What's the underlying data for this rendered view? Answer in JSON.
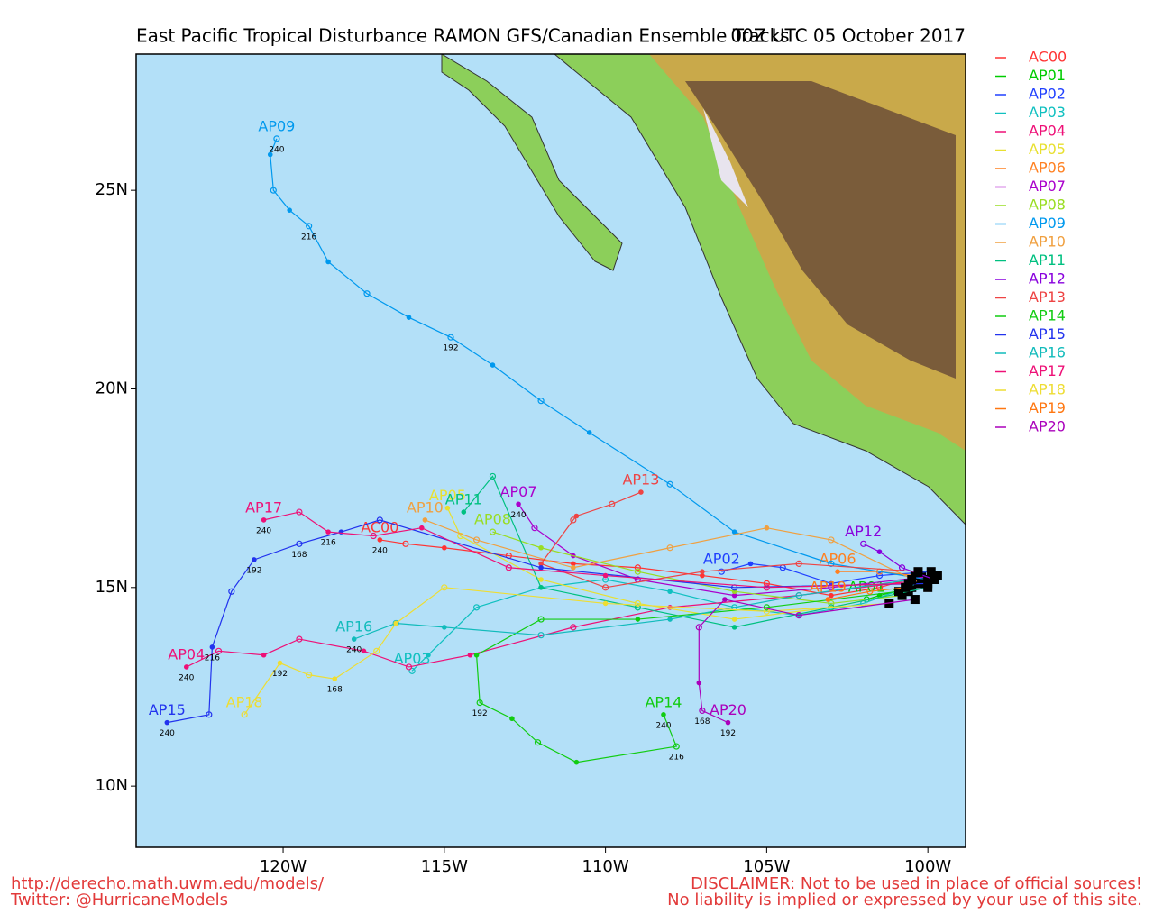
{
  "map": {
    "title": "East Pacific Tropical Disturbance RAMON GFS/Canadian Ensemble Tracks",
    "subtitle": "00Z UTC 05 October 2017",
    "lon_range": [
      -124.56,
      -98.83
    ],
    "lat_range": [
      8.46,
      28.43
    ],
    "lon_ticks": [
      {
        "value": -120,
        "label": "120W"
      },
      {
        "value": -115,
        "label": "115W"
      },
      {
        "value": -110,
        "label": "110W"
      },
      {
        "value": -105,
        "label": "105W"
      },
      {
        "value": -100,
        "label": "100W"
      }
    ],
    "lat_ticks": [
      {
        "value": 10,
        "label": "10N"
      },
      {
        "value": 15,
        "label": "15N"
      },
      {
        "value": 20,
        "label": "20N"
      },
      {
        "value": 25,
        "label": "25N"
      }
    ],
    "tracks": [
      {
        "name": "AC00",
        "color": "#ff3333",
        "points": [
          [
            -100.2,
            15.3
          ],
          [
            -101.5,
            15.0
          ],
          [
            -103,
            14.8
          ],
          [
            -105,
            15.1
          ],
          [
            -107,
            15.3
          ],
          [
            -109,
            15.5
          ],
          [
            -111,
            15.6
          ],
          [
            -113,
            15.8
          ],
          [
            -115,
            16.0
          ],
          [
            -116.2,
            16.1
          ],
          [
            -117,
            16.2
          ]
        ],
        "hours": [
          {
            "point": 10,
            "hour": 240
          }
        ]
      },
      {
        "name": "AP01",
        "color": "#00cc00",
        "points": [
          [
            -100.5,
            15.0
          ],
          [
            -101,
            14.9
          ],
          [
            -101.5,
            14.8
          ],
          [
            -101.9,
            14.7
          ]
        ],
        "hours": []
      },
      {
        "name": "AP02",
        "color": "#2040ff",
        "points": [
          [
            -99.9,
            15.4
          ],
          [
            -101.5,
            15.3
          ],
          [
            -103,
            15.1
          ],
          [
            -104.5,
            15.5
          ],
          [
            -105.5,
            15.6
          ],
          [
            -106.4,
            15.4
          ]
        ],
        "hours": []
      },
      {
        "name": "AP03",
        "color": "#10c0c0",
        "points": [
          [
            -100.3,
            15.1
          ],
          [
            -102,
            14.6
          ],
          [
            -104,
            14.3
          ],
          [
            -106,
            14.5
          ],
          [
            -108,
            14.9
          ],
          [
            -110,
            15.2
          ],
          [
            -112,
            15.0
          ],
          [
            -114,
            14.5
          ],
          [
            -115.5,
            13.3
          ],
          [
            -116,
            12.9
          ]
        ],
        "hours": []
      },
      {
        "name": "AP04",
        "color": "#ee1077",
        "points": [
          [
            -100.1,
            15.2
          ],
          [
            -104,
            14.8
          ],
          [
            -108,
            14.5
          ],
          [
            -111,
            14.0
          ],
          [
            -114.2,
            13.3
          ],
          [
            -116.1,
            13.0
          ],
          [
            -117.5,
            13.4
          ],
          [
            -119.5,
            13.7
          ],
          [
            -120.6,
            13.3
          ],
          [
            -122,
            13.4
          ],
          [
            -123,
            13.0
          ]
        ],
        "hours": [
          {
            "point": 10,
            "hour": 240
          }
        ]
      },
      {
        "name": "AP05",
        "color": "#e8e030",
        "points": [
          [
            -100.6,
            14.9
          ],
          [
            -103,
            14.5
          ],
          [
            -106,
            14.2
          ],
          [
            -109,
            14.6
          ],
          [
            -112,
            15.2
          ],
          [
            -114.5,
            16.3
          ],
          [
            -114.9,
            17.0
          ]
        ],
        "hours": []
      },
      {
        "name": "AP06",
        "color": "#ff8020",
        "points": [
          [
            -100.4,
            15.3
          ],
          [
            -101.5,
            15.4
          ],
          [
            -102.8,
            15.4
          ]
        ],
        "hours": []
      },
      {
        "name": "AP07",
        "color": "#aa00cc",
        "points": [
          [
            -99.7,
            15.3
          ],
          [
            -103,
            15.0
          ],
          [
            -106,
            14.8
          ],
          [
            -109,
            15.2
          ],
          [
            -111,
            15.8
          ],
          [
            -112.2,
            16.5
          ],
          [
            -112.7,
            17.1
          ]
        ],
        "hours": [
          {
            "point": 6,
            "hour": 240
          }
        ]
      },
      {
        "name": "AP08",
        "color": "#99dd22",
        "points": [
          [
            -100.8,
            14.8
          ],
          [
            -103,
            14.6
          ],
          [
            -106,
            14.9
          ],
          [
            -109,
            15.4
          ],
          [
            -112,
            16.0
          ],
          [
            -113.5,
            16.4
          ]
        ],
        "hours": []
      },
      {
        "name": "AP09",
        "color": "#0099ee",
        "points": [
          [
            -100,
            15.2
          ],
          [
            -103,
            15.6
          ],
          [
            -106,
            16.4
          ],
          [
            -108,
            17.6
          ],
          [
            -110.5,
            18.9
          ],
          [
            -112,
            19.7
          ],
          [
            -113.5,
            20.6
          ],
          [
            -114.8,
            21.3
          ],
          [
            -116.1,
            21.8
          ],
          [
            -117.4,
            22.4
          ],
          [
            -118.6,
            23.2
          ],
          [
            -119.2,
            24.1
          ],
          [
            -119.8,
            24.5
          ],
          [
            -120.3,
            25.0
          ],
          [
            -120.4,
            25.9
          ],
          [
            -120.2,
            26.3
          ]
        ],
        "hours": [
          {
            "point": 7,
            "hour": 192
          },
          {
            "point": 11,
            "hour": 216
          },
          {
            "point": 15,
            "hour": 240
          }
        ]
      },
      {
        "name": "AP10",
        "color": "#f0a040",
        "points": [
          [
            -100.2,
            15.1
          ],
          [
            -103,
            16.2
          ],
          [
            -105,
            16.5
          ],
          [
            -108,
            16.0
          ],
          [
            -111,
            15.5
          ],
          [
            -114,
            16.2
          ],
          [
            -115.6,
            16.7
          ]
        ],
        "hours": []
      },
      {
        "name": "AP11",
        "color": "#00c080",
        "points": [
          [
            -100,
            15.0
          ],
          [
            -103,
            14.5
          ],
          [
            -106,
            14.0
          ],
          [
            -109,
            14.5
          ],
          [
            -112,
            15.0
          ],
          [
            -113.5,
            17.8
          ],
          [
            -114.4,
            16.9
          ]
        ],
        "hours": []
      },
      {
        "name": "AP12",
        "color": "#8800dd",
        "points": [
          [
            -99.8,
            15.2
          ],
          [
            -100.8,
            15.5
          ],
          [
            -101.5,
            15.9
          ],
          [
            -102,
            16.1
          ]
        ],
        "hours": []
      },
      {
        "name": "AP13",
        "color": "#ee4444",
        "points": [
          [
            -100.3,
            15.4
          ],
          [
            -104,
            15.6
          ],
          [
            -107,
            15.4
          ],
          [
            -110,
            15.0
          ],
          [
            -112,
            15.6
          ],
          [
            -111,
            16.7
          ],
          [
            -110.9,
            16.8
          ],
          [
            -109.8,
            17.1
          ],
          [
            -108.9,
            17.4
          ]
        ],
        "hours": []
      },
      {
        "name": "AP14",
        "color": "#11cc11",
        "points": [
          [
            -100.9,
            14.9
          ],
          [
            -105,
            14.5
          ],
          [
            -109,
            14.2
          ],
          [
            -112,
            14.2
          ],
          [
            -114,
            13.3
          ],
          [
            -113.9,
            12.1
          ],
          [
            -112.9,
            11.7
          ],
          [
            -112.1,
            11.1
          ],
          [
            -110.9,
            10.6
          ],
          [
            -107.8,
            11.0
          ],
          [
            -108.2,
            11.8
          ]
        ],
        "hours": [
          {
            "point": 5,
            "hour": 192
          },
          {
            "point": 9,
            "hour": 216
          },
          {
            "point": 10,
            "hour": 240
          }
        ]
      },
      {
        "name": "AP15",
        "color": "#2233ee",
        "points": [
          [
            -100.0,
            15.1
          ],
          [
            -106,
            15.0
          ],
          [
            -112,
            15.5
          ],
          [
            -117,
            16.7
          ],
          [
            -118.2,
            16.4
          ],
          [
            -119.5,
            16.1
          ],
          [
            -120.9,
            15.7
          ],
          [
            -121.6,
            14.9
          ],
          [
            -122.2,
            13.5
          ],
          [
            -122.3,
            11.8
          ],
          [
            -123.6,
            11.6
          ]
        ],
        "hours": [
          {
            "point": 5,
            "hour": 168
          },
          {
            "point": 6,
            "hour": 192
          },
          {
            "point": 8,
            "hour": 216
          },
          {
            "point": 10,
            "hour": 240
          }
        ]
      },
      {
        "name": "AP16",
        "color": "#11bbbb",
        "points": [
          [
            -100.5,
            15.2
          ],
          [
            -104,
            14.8
          ],
          [
            -108,
            14.2
          ],
          [
            -112,
            13.8
          ],
          [
            -115,
            14.0
          ],
          [
            -116.5,
            14.1
          ],
          [
            -117.8,
            13.7
          ]
        ],
        "hours": [
          {
            "point": 6,
            "hour": 240
          }
        ]
      },
      {
        "name": "AP17",
        "color": "#ee1177",
        "points": [
          [
            -100.6,
            15.1
          ],
          [
            -105,
            15.0
          ],
          [
            -110,
            15.3
          ],
          [
            -113,
            15.5
          ],
          [
            -115.7,
            16.5
          ],
          [
            -117.2,
            16.3
          ],
          [
            -118.6,
            16.4
          ],
          [
            -119.5,
            16.9
          ],
          [
            -120.6,
            16.7
          ]
        ],
        "hours": [
          {
            "point": 6,
            "hour": 216
          },
          {
            "point": 8,
            "hour": 240
          }
        ]
      },
      {
        "name": "AP18",
        "color": "#eedd33",
        "points": [
          [
            -101.2,
            14.6
          ],
          [
            -105,
            14.4
          ],
          [
            -110,
            14.6
          ],
          [
            -115,
            15.0
          ],
          [
            -116.5,
            14.1
          ],
          [
            -117.1,
            13.4
          ],
          [
            -118.4,
            12.7
          ],
          [
            -119.2,
            12.8
          ],
          [
            -120.1,
            13.1
          ],
          [
            -121.2,
            11.8
          ]
        ],
        "hours": [
          {
            "point": 6,
            "hour": 168
          },
          {
            "point": 8,
            "hour": 192
          }
        ]
      },
      {
        "name": "AP19",
        "color": "#ff7711",
        "points": [
          [
            -100.7,
            15.0
          ],
          [
            -101.8,
            14.9
          ],
          [
            -103.1,
            14.7
          ]
        ],
        "hours": []
      },
      {
        "name": "AP20",
        "color": "#aa00bb",
        "points": [
          [
            -100.4,
            14.7
          ],
          [
            -104,
            14.3
          ],
          [
            -106.3,
            14.7
          ],
          [
            -107.1,
            14.0
          ],
          [
            -107.1,
            12.6
          ],
          [
            -107.0,
            11.9
          ],
          [
            -106.2,
            11.6
          ]
        ],
        "hours": [
          {
            "point": 5,
            "hour": 168
          },
          {
            "point": 6,
            "hour": 192
          }
        ]
      }
    ],
    "footer_left": [
      "http://derecho.math.uwm.edu/models/",
      "Twitter: @HurricaneModels"
    ],
    "footer_right": [
      "DISCLAIMER: Not to be used in place of official sources!",
      "No liability is implied or expressed by your use of this site."
    ]
  }
}
